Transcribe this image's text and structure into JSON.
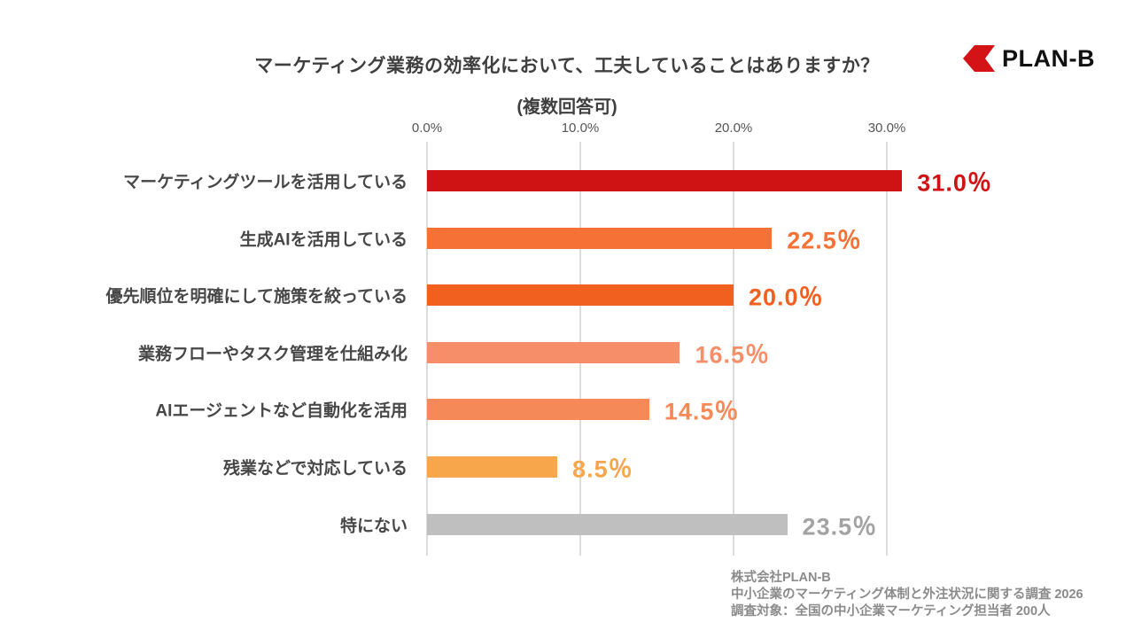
{
  "header": {
    "title": "マーケティング業務の効率化において、工夫していることはありますか？",
    "subtitle": "(複数回答可)",
    "logo_text": "PLAN-B",
    "logo_color": "#d41317"
  },
  "chart_data": {
    "type": "bar",
    "orientation": "horizontal",
    "title": "マーケティング業務の効率化において、工夫していることはありますか？（複数回答可）",
    "categories": [
      "マーケティングツールを活用している",
      "生成AIを活用している",
      "優先順位を明確にして施策を絞っている",
      "業務フローやタスク管理を仕組み化",
      "AIエージェントなど自動化を活用",
      "残業などで対応している",
      "特にない"
    ],
    "values": [
      31.0,
      22.5,
      20.0,
      16.5,
      14.5,
      8.5,
      23.5
    ],
    "value_labels": [
      "31.0％",
      "22.5％",
      "20.0％",
      "16.5％",
      "14.5％",
      "8.5％",
      "23.5％"
    ],
    "bar_colors": [
      "#cf1315",
      "#f57135",
      "#f2601f",
      "#f68e6a",
      "#f58a58",
      "#f8a64c",
      "#bfbfbf"
    ],
    "value_label_colors": [
      "#cf1315",
      "#f57135",
      "#f2601f",
      "#f68e6a",
      "#f58a58",
      "#f8a64c",
      "#a3a3a3"
    ],
    "x_ticks": [
      0,
      10,
      20,
      30
    ],
    "x_tick_labels": [
      "0.0%",
      "10.0%",
      "20.0%",
      "30.0%"
    ],
    "xlim": [
      0,
      31.5
    ],
    "grid": true,
    "gridline_color": "#dcdcdc",
    "legend_position": "none"
  },
  "footer": {
    "lines": [
      "株式会社PLAN-B",
      "中小企業のマーケティング体制と外注状況に関する調査 2026",
      "調査対象：全国の中小企業マーケティング担当者 200人"
    ]
  }
}
